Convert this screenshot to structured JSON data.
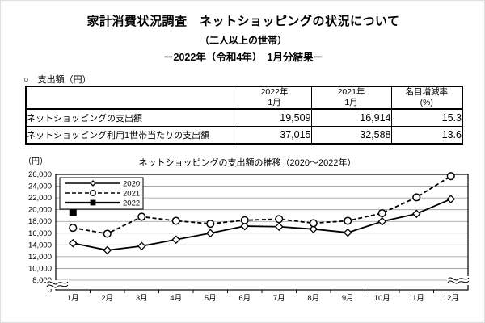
{
  "page": {
    "title": "家計消費状況調査　ネットショッピングの状況について",
    "subtitle1": "（二人以上の世帯）",
    "subtitle2": "－2022年（令和4年）　1月分結果－"
  },
  "table": {
    "section_label": "○　支出額（円）",
    "headers": [
      {
        "line1": "2022年",
        "line2": "1月"
      },
      {
        "line1": "2021年",
        "line2": "1月"
      },
      {
        "line1": "名目増減率",
        "line2": "(%)"
      }
    ],
    "rows": [
      {
        "label": "ネットショッピングの支出額",
        "y2022": "19,509",
        "y2021": "16,914",
        "rate": "15.3"
      },
      {
        "label": "ネットショッピング利用1世帯当たりの支出額",
        "y2022": "37,015",
        "y2021": "32,588",
        "rate": "13.6"
      }
    ]
  },
  "chart_data": {
    "type": "line",
    "title": "ネットショッピングの支出額の推移（2020～2022年）",
    "y_axis_unit": "（円）",
    "categories": [
      "1月",
      "2月",
      "3月",
      "4月",
      "5月",
      "6月",
      "7月",
      "8月",
      "9月",
      "10月",
      "11月",
      "12月"
    ],
    "y_ticks": [
      26000,
      24000,
      22000,
      20000,
      18000,
      16000,
      14000,
      12000,
      10000,
      8000,
      0
    ],
    "y_tick_labels": [
      "26,000",
      "24,000",
      "22,000",
      "20,000",
      "18,000",
      "16,000",
      "14,000",
      "12,000",
      "10,000",
      "8,000",
      "0"
    ],
    "ylim_plotted": [
      8000,
      26000
    ],
    "axis_break_between": [
      0,
      8000
    ],
    "grid": true,
    "legend_position": "top-left",
    "colors": {
      "line": "#000000",
      "gridline": "#999999",
      "marker_fill": "#ffffff"
    },
    "series": [
      {
        "name": "2020",
        "line_style": "solid",
        "marker": "open-diamond",
        "values": [
          14300,
          13100,
          13800,
          14900,
          16000,
          17200,
          17100,
          16700,
          16100,
          18000,
          19300,
          21800
        ]
      },
      {
        "name": "2021",
        "line_style": "dashed",
        "marker": "open-circle",
        "values": [
          16914,
          15900,
          18800,
          18100,
          17600,
          18200,
          18400,
          17700,
          18100,
          19400,
          22100,
          25700
        ]
      },
      {
        "name": "2022",
        "line_style": "solid",
        "marker": "filled-square",
        "values": [
          19509
        ]
      }
    ]
  }
}
